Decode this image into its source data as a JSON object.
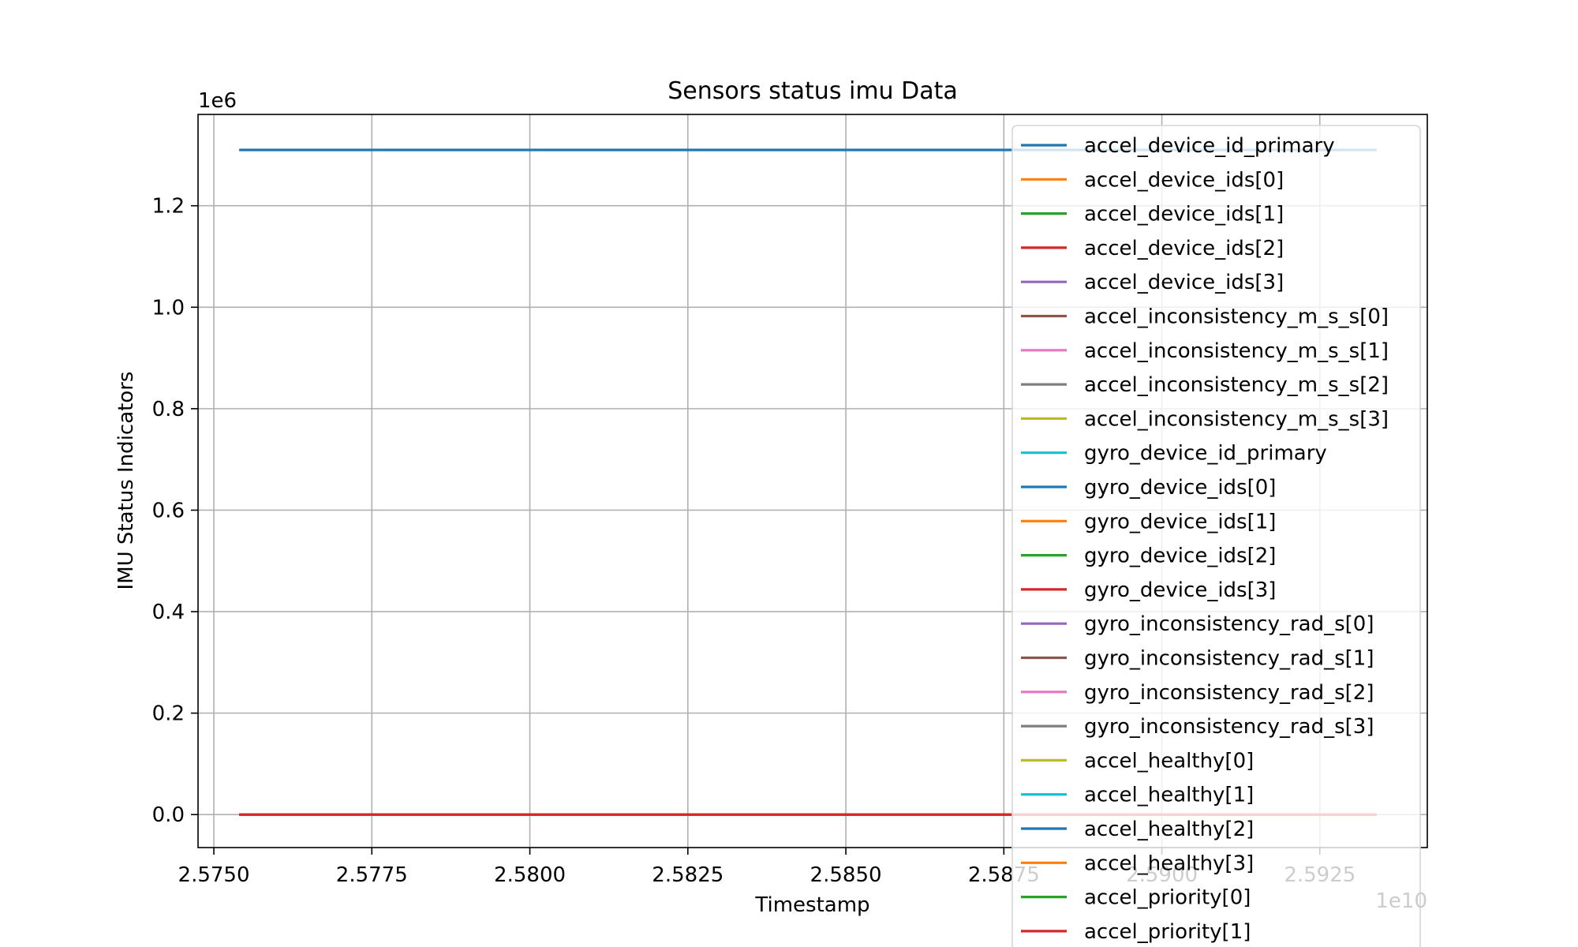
{
  "chart_data": {
    "type": "line",
    "title": "Sensors status imu Data",
    "xlabel": "Timestamp",
    "ylabel": "IMU Status Indicators",
    "x_offset_label": "1e10",
    "y_offset_label": "1e6",
    "xlim": [
      2.57475,
      2.5942
    ],
    "ylim": [
      -0.065,
      1.38
    ],
    "x_ticks": [
      2.575,
      2.5775,
      2.58,
      2.5825,
      2.585,
      2.5875,
      2.59,
      2.5925
    ],
    "x_tick_labels": [
      "2.5750",
      "2.5775",
      "2.5800",
      "2.5825",
      "2.5850",
      "2.5875",
      "2.5900",
      "2.5925"
    ],
    "y_ticks": [
      0.0,
      0.2,
      0.4,
      0.6,
      0.8,
      1.0,
      1.2
    ],
    "y_tick_labels": [
      "0.0",
      "0.2",
      "0.4",
      "0.6",
      "0.8",
      "1.0",
      "1.2"
    ],
    "grid": true,
    "legend_position": "upper right",
    "x": [
      2.5754,
      2.5934
    ],
    "series": [
      {
        "name": "accel_device_id_primary",
        "color": "#1f77b4",
        "values": [
          1.31,
          1.31
        ]
      },
      {
        "name": "accel_device_ids[0]",
        "color": "#ff7f0e",
        "values": [
          0,
          0
        ]
      },
      {
        "name": "accel_device_ids[1]",
        "color": "#2ca02c",
        "values": [
          0,
          0
        ]
      },
      {
        "name": "accel_device_ids[2]",
        "color": "#d62728",
        "values": [
          0,
          0
        ]
      },
      {
        "name": "accel_device_ids[3]",
        "color": "#9467bd",
        "values": [
          0,
          0
        ]
      },
      {
        "name": "accel_inconsistency_m_s_s[0]",
        "color": "#8c564b",
        "values": [
          0,
          0
        ]
      },
      {
        "name": "accel_inconsistency_m_s_s[1]",
        "color": "#e377c2",
        "values": [
          0,
          0
        ]
      },
      {
        "name": "accel_inconsistency_m_s_s[2]",
        "color": "#7f7f7f",
        "values": [
          0,
          0
        ]
      },
      {
        "name": "accel_inconsistency_m_s_s[3]",
        "color": "#bcbd22",
        "values": [
          0,
          0
        ]
      },
      {
        "name": "gyro_device_id_primary",
        "color": "#17becf",
        "values": [
          0,
          0
        ]
      },
      {
        "name": "gyro_device_ids[0]",
        "color": "#1f77b4",
        "values": [
          0,
          0
        ]
      },
      {
        "name": "gyro_device_ids[1]",
        "color": "#ff7f0e",
        "values": [
          0,
          0
        ]
      },
      {
        "name": "gyro_device_ids[2]",
        "color": "#2ca02c",
        "values": [
          0,
          0
        ]
      },
      {
        "name": "gyro_device_ids[3]",
        "color": "#d62728",
        "values": [
          0,
          0
        ]
      },
      {
        "name": "gyro_inconsistency_rad_s[0]",
        "color": "#9467bd",
        "values": [
          0,
          0
        ]
      },
      {
        "name": "gyro_inconsistency_rad_s[1]",
        "color": "#8c564b",
        "values": [
          0,
          0
        ]
      },
      {
        "name": "gyro_inconsistency_rad_s[2]",
        "color": "#e377c2",
        "values": [
          0,
          0
        ]
      },
      {
        "name": "gyro_inconsistency_rad_s[3]",
        "color": "#7f7f7f",
        "values": [
          0,
          0
        ]
      },
      {
        "name": "accel_healthy[0]",
        "color": "#bcbd22",
        "values": [
          0,
          0
        ]
      },
      {
        "name": "accel_healthy[1]",
        "color": "#17becf",
        "values": [
          0,
          0
        ]
      },
      {
        "name": "accel_healthy[2]",
        "color": "#1f77b4",
        "values": [
          0,
          0
        ]
      },
      {
        "name": "accel_healthy[3]",
        "color": "#ff7f0e",
        "values": [
          0,
          0
        ]
      },
      {
        "name": "accel_priority[0]",
        "color": "#2ca02c",
        "values": [
          0,
          0
        ]
      },
      {
        "name": "accel_priority[1]",
        "color": "#d62728",
        "values": [
          0,
          0
        ]
      }
    ]
  }
}
